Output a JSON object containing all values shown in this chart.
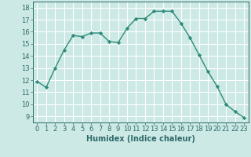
{
  "x": [
    0,
    1,
    2,
    3,
    4,
    5,
    6,
    7,
    8,
    9,
    10,
    11,
    12,
    13,
    14,
    15,
    16,
    17,
    18,
    19,
    20,
    21,
    22,
    23
  ],
  "y": [
    11.9,
    11.4,
    13.0,
    14.5,
    15.7,
    15.6,
    15.9,
    15.9,
    15.2,
    15.1,
    16.3,
    17.1,
    17.1,
    17.7,
    17.7,
    17.7,
    16.7,
    15.5,
    14.1,
    12.7,
    11.5,
    10.0,
    9.4,
    8.9
  ],
  "line_color": "#2e8b7a",
  "marker": "D",
  "marker_size": 2.2,
  "bg_color": "#cce9e5",
  "grid_color": "#ffffff",
  "xlabel": "Humidex (Indice chaleur)",
  "ylim": [
    8.5,
    18.5
  ],
  "xlim": [
    -0.5,
    23.5
  ],
  "yticks": [
    9,
    10,
    11,
    12,
    13,
    14,
    15,
    16,
    17,
    18
  ],
  "xticks": [
    0,
    1,
    2,
    3,
    4,
    5,
    6,
    7,
    8,
    9,
    10,
    11,
    12,
    13,
    14,
    15,
    16,
    17,
    18,
    19,
    20,
    21,
    22,
    23
  ],
  "tick_color": "#2e6b6a",
  "label_fontsize": 7,
  "tick_fontsize": 6,
  "linewidth": 1.0
}
